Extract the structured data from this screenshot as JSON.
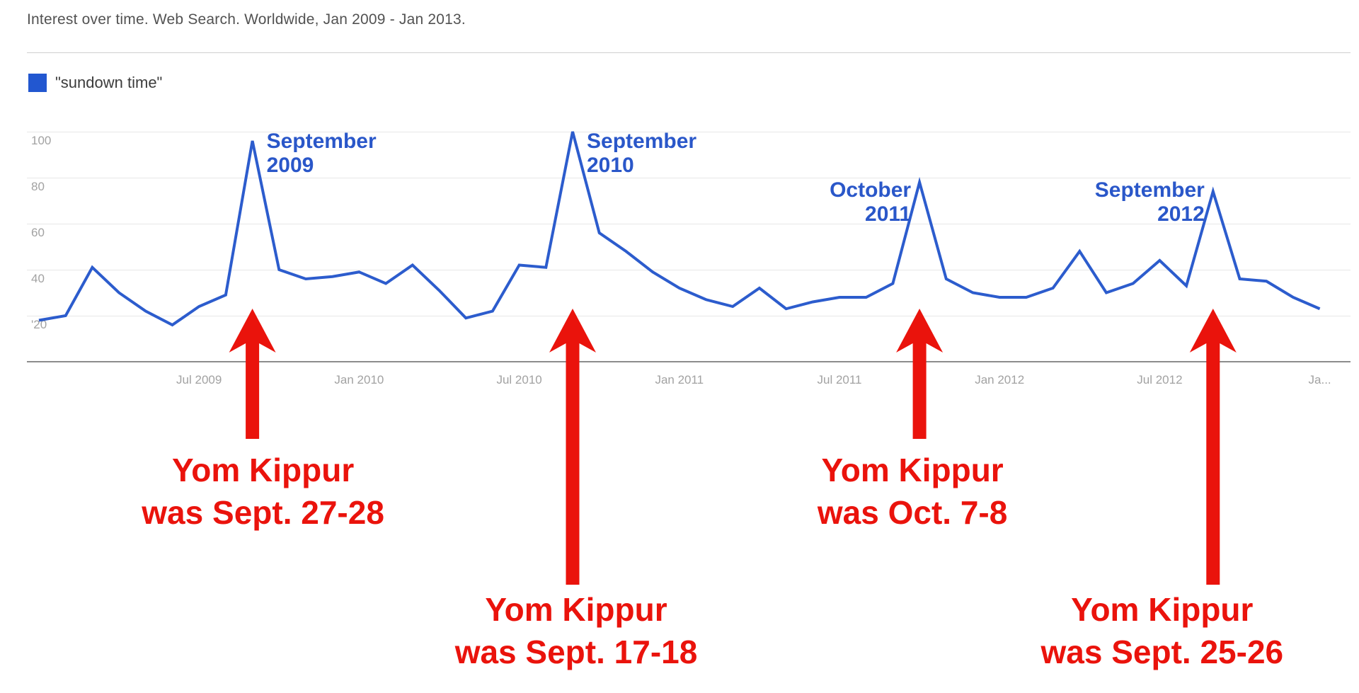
{
  "page": {
    "title": "Interest over time. Web Search. Worldwide, Jan 2009 - Jan 2013."
  },
  "legend": {
    "label": "\"sundown time\""
  },
  "colors": {
    "line_blue": "#2c5ccd",
    "swatch_blue": "#2257d0",
    "text_blue": "#2a57c9",
    "annotation_red": "#ea130c"
  },
  "chart_data": {
    "type": "line",
    "title": "Interest over time. Web Search. Worldwide, Jan 2009 - Jan 2013.",
    "series_name": "\"sundown time\"",
    "xlabel": "",
    "ylabel": "",
    "ylim": [
      0,
      100
    ],
    "grid": true,
    "legend_position": "top-left",
    "x": [
      "Jan 2009",
      "Feb 2009",
      "Mar 2009",
      "Apr 2009",
      "May 2009",
      "Jun 2009",
      "Jul 2009",
      "Aug 2009",
      "Sep 2009",
      "Oct 2009",
      "Nov 2009",
      "Dec 2009",
      "Jan 2010",
      "Feb 2010",
      "Mar 2010",
      "Apr 2010",
      "May 2010",
      "Jun 2010",
      "Jul 2010",
      "Aug 2010",
      "Sep 2010",
      "Oct 2010",
      "Nov 2010",
      "Dec 2010",
      "Jan 2011",
      "Feb 2011",
      "Mar 2011",
      "Apr 2011",
      "May 2011",
      "Jun 2011",
      "Jul 2011",
      "Aug 2011",
      "Sep 2011",
      "Oct 2011",
      "Nov 2011",
      "Dec 2011",
      "Jan 2012",
      "Feb 2012",
      "Mar 2012",
      "Apr 2012",
      "May 2012",
      "Jun 2012",
      "Jul 2012",
      "Aug 2012",
      "Sep 2012",
      "Oct 2012",
      "Nov 2012",
      "Dec 2012",
      "Jan 2013"
    ],
    "values": [
      18,
      20,
      41,
      30,
      22,
      16,
      24,
      29,
      96,
      40,
      36,
      37,
      39,
      34,
      42,
      31,
      19,
      22,
      42,
      41,
      100,
      56,
      48,
      39,
      32,
      27,
      24,
      32,
      23,
      26,
      28,
      28,
      34,
      78,
      36,
      30,
      28,
      28,
      32,
      48,
      30,
      34,
      44,
      33,
      74,
      36,
      35,
      28,
      23
    ],
    "yticks": [
      {
        "value": 100,
        "label": "100"
      },
      {
        "value": 80,
        "label": "80"
      },
      {
        "value": 60,
        "label": "60"
      },
      {
        "value": 40,
        "label": "40"
      },
      {
        "value": 20,
        "label": "'20"
      }
    ],
    "xticks": [
      {
        "label": "Jul 2009",
        "month_index": 6
      },
      {
        "label": "Jan 2010",
        "month_index": 12
      },
      {
        "label": "Jul 2010",
        "month_index": 18
      },
      {
        "label": "Jan 2011",
        "month_index": 24
      },
      {
        "label": "Jul 2011",
        "month_index": 30
      },
      {
        "label": "Jan 2012",
        "month_index": 36
      },
      {
        "label": "Jul 2012",
        "month_index": 42
      },
      {
        "label": "Ja...",
        "month_index": 48
      }
    ],
    "peak_annotations": [
      {
        "lines": [
          "September",
          "2009"
        ],
        "month_index": 8,
        "align": "left"
      },
      {
        "lines": [
          "September",
          "2010"
        ],
        "month_index": 20,
        "align": "left"
      },
      {
        "lines": [
          "October",
          "2011"
        ],
        "month_index": 33,
        "align": "right"
      },
      {
        "lines": [
          "September",
          "2012"
        ],
        "month_index": 44,
        "align": "right"
      }
    ],
    "arrow_annotations": [
      {
        "lines": [
          "Yom Kippur",
          "was Sept. 27-28"
        ],
        "month_index": 8,
        "text_row": "upper"
      },
      {
        "lines": [
          "Yom Kippur",
          "was Sept. 17-18"
        ],
        "month_index": 20,
        "text_row": "lower"
      },
      {
        "lines": [
          "Yom Kippur",
          "was Oct. 7-8"
        ],
        "month_index": 33,
        "text_row": "upper"
      },
      {
        "lines": [
          "Yom Kippur",
          "was Sept. 25-26"
        ],
        "month_index": 44,
        "text_row": "lower"
      }
    ]
  }
}
